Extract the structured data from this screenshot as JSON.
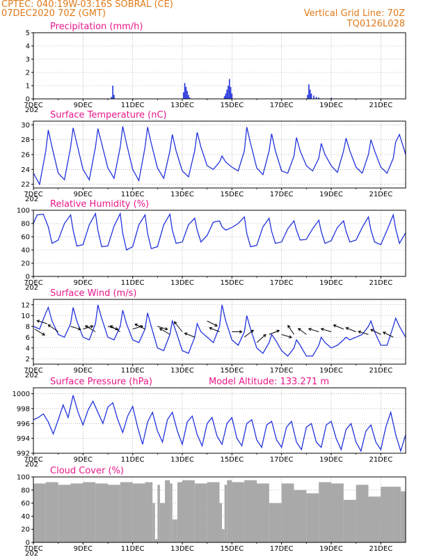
{
  "header": {
    "org_station": "CPTEC:   040:19W-03:16S   SOBRAL (CE)",
    "run_time": "07DEC2020 70Z (GMT)",
    "vertical_grid_line": "Vertical Grid Line: 70Z",
    "code": "TQ0126L028"
  },
  "colors": {
    "header": "#e07a1a",
    "title": "#e8178a",
    "line": "#2233dd",
    "cloud": "#a9a9a9",
    "wind_arrow": "#000000"
  },
  "x_ticks": [
    "7DEC",
    "9DEC",
    "11DEC",
    "13DEC",
    "15DEC",
    "17DEC",
    "19DEC",
    "21DEC"
  ],
  "year_stub": "202",
  "chart_data": [
    {
      "type": "bar",
      "title": "Precipitation (mm/h)",
      "x_unit": "days since 7DEC 00Z",
      "ylim": [
        0,
        5
      ],
      "yticks": [
        0,
        1,
        2,
        3,
        4,
        5
      ],
      "x": [
        3.15,
        3.2,
        3.25,
        6.05,
        6.1,
        6.15,
        6.2,
        6.25,
        6.3,
        7.7,
        7.75,
        7.8,
        7.85,
        7.9,
        7.95,
        8.0,
        11.05,
        11.1,
        11.15,
        11.2,
        11.3,
        11.4,
        11.5,
        12.0
      ],
      "values": [
        0.15,
        1.0,
        0.3,
        0.5,
        1.2,
        0.9,
        0.6,
        0.3,
        0.1,
        0.2,
        0.4,
        0.7,
        1.0,
        1.5,
        0.9,
        0.4,
        0.3,
        1.1,
        0.7,
        0.4,
        0.25,
        0.15,
        0.1,
        0.1
      ]
    },
    {
      "type": "line",
      "title": "Surface Temperature (nC)",
      "ylim": [
        21.5,
        30.5
      ],
      "yticks": [
        22,
        24,
        26,
        28,
        30
      ],
      "x": [
        0,
        0.25,
        0.5,
        0.6,
        0.75,
        1.0,
        1.25,
        1.5,
        1.6,
        1.75,
        2.0,
        2.25,
        2.5,
        2.6,
        2.75,
        3.0,
        3.25,
        3.5,
        3.6,
        3.75,
        4.0,
        4.25,
        4.5,
        4.6,
        4.75,
        5.0,
        5.25,
        5.5,
        5.6,
        5.75,
        6.0,
        6.25,
        6.5,
        6.6,
        6.75,
        7.0,
        7.25,
        7.5,
        7.6,
        7.75,
        8.0,
        8.25,
        8.5,
        8.6,
        8.75,
        9.0,
        9.25,
        9.5,
        9.6,
        9.75,
        10.0,
        10.25,
        10.5,
        10.6,
        10.75,
        11.0,
        11.25,
        11.5,
        11.6,
        11.75,
        12.0,
        12.25,
        12.5,
        12.6,
        12.75,
        13.0,
        13.25,
        13.5,
        13.6,
        13.75,
        14.0,
        14.25,
        14.5,
        14.6,
        14.75,
        15.0
      ],
      "values": [
        23.5,
        22.0,
        26.5,
        29.3,
        27.0,
        23.5,
        22.6,
        27.0,
        29.6,
        27.5,
        24.0,
        22.6,
        27.0,
        29.5,
        27.5,
        24.2,
        22.8,
        27.0,
        29.8,
        27.5,
        24.0,
        22.5,
        27.0,
        29.7,
        27.5,
        24.2,
        22.8,
        26.5,
        28.7,
        26.5,
        23.8,
        23.0,
        26.5,
        29.0,
        27.0,
        24.5,
        24.0,
        25.0,
        25.8,
        25.0,
        24.3,
        23.8,
        26.5,
        29.7,
        27.5,
        24.2,
        23.3,
        26.5,
        28.8,
        26.5,
        23.8,
        23.5,
        25.8,
        28.3,
        26.5,
        24.5,
        23.8,
        25.5,
        27.5,
        26.0,
        24.5,
        23.6,
        26.5,
        28.2,
        26.5,
        24.3,
        23.5,
        26.0,
        28.0,
        26.5,
        24.3,
        23.5,
        25.5,
        27.7,
        28.7,
        26.0
      ]
    },
    {
      "type": "line",
      "title": "Relative Humidity (%)",
      "ylim": [
        0,
        100
      ],
      "yticks": [
        0,
        20,
        40,
        60,
        80,
        100
      ],
      "x": [
        0,
        0.15,
        0.4,
        0.6,
        0.75,
        1.0,
        1.25,
        1.5,
        1.6,
        1.75,
        2.0,
        2.25,
        2.5,
        2.6,
        2.75,
        3.0,
        3.25,
        3.5,
        3.6,
        3.75,
        4.0,
        4.25,
        4.5,
        4.6,
        4.75,
        5.0,
        5.25,
        5.5,
        5.6,
        5.75,
        6.0,
        6.25,
        6.5,
        6.6,
        6.75,
        7.0,
        7.25,
        7.5,
        7.6,
        7.75,
        8.0,
        8.25,
        8.5,
        8.6,
        8.75,
        9.0,
        9.25,
        9.5,
        9.6,
        9.75,
        10.0,
        10.25,
        10.5,
        10.6,
        10.75,
        11.0,
        11.25,
        11.5,
        11.6,
        11.75,
        12.0,
        12.25,
        12.5,
        12.6,
        12.75,
        13.0,
        13.25,
        13.5,
        13.6,
        13.75,
        14.0,
        14.25,
        14.5,
        14.6,
        14.75,
        15.0
      ],
      "values": [
        80,
        93,
        94,
        75,
        50,
        55,
        80,
        93,
        70,
        46,
        48,
        78,
        95,
        70,
        45,
        46,
        76,
        95,
        65,
        40,
        45,
        78,
        93,
        65,
        42,
        45,
        78,
        94,
        70,
        50,
        52,
        78,
        88,
        70,
        52,
        62,
        82,
        84,
        75,
        70,
        74,
        80,
        90,
        65,
        45,
        47,
        75,
        88,
        68,
        50,
        52,
        72,
        84,
        70,
        55,
        56,
        72,
        85,
        68,
        50,
        54,
        74,
        84,
        68,
        52,
        55,
        74,
        90,
        70,
        52,
        48,
        70,
        93,
        72,
        50,
        66
      ]
    },
    {
      "type": "line",
      "title": "Surface Wind (m/s)",
      "ylim": [
        1,
        13
      ],
      "yticks": [
        2,
        4,
        6,
        8,
        10,
        12
      ],
      "x": [
        0,
        0.25,
        0.5,
        0.6,
        0.75,
        1.0,
        1.25,
        1.5,
        1.6,
        1.75,
        2.0,
        2.25,
        2.5,
        2.6,
        2.75,
        3.0,
        3.25,
        3.5,
        3.6,
        3.75,
        4.0,
        4.25,
        4.5,
        4.6,
        4.75,
        5.0,
        5.25,
        5.5,
        5.6,
        5.75,
        6.0,
        6.25,
        6.5,
        6.6,
        6.75,
        7.0,
        7.25,
        7.5,
        7.6,
        7.75,
        8.0,
        8.25,
        8.5,
        8.6,
        8.75,
        9.0,
        9.25,
        9.5,
        9.6,
        9.75,
        10.0,
        10.25,
        10.5,
        10.6,
        10.75,
        11.0,
        11.25,
        11.5,
        11.6,
        11.75,
        12.0,
        12.25,
        12.5,
        12.6,
        12.75,
        13.0,
        13.25,
        13.5,
        13.6,
        13.75,
        14.0,
        14.25,
        14.5,
        14.6,
        14.75,
        15.0
      ],
      "values": [
        8,
        7.5,
        10.5,
        11.5,
        9.0,
        6.5,
        6.0,
        8.5,
        11.5,
        9.0,
        6.0,
        5.5,
        8.5,
        12.0,
        9.5,
        6.0,
        5.5,
        8.0,
        11.0,
        8.5,
        5.5,
        5.0,
        7.5,
        10.5,
        8.0,
        4.0,
        3.5,
        6.5,
        9.0,
        7.0,
        3.5,
        3.0,
        6.0,
        8.5,
        7.0,
        6.0,
        5.0,
        8.0,
        12.0,
        9.0,
        5.5,
        4.5,
        7.0,
        10.0,
        7.5,
        4.0,
        3.0,
        5.0,
        6.5,
        5.5,
        3.5,
        2.5,
        4.0,
        5.5,
        4.5,
        2.5,
        2.5,
        4.5,
        6.0,
        5.0,
        4.0,
        4.5,
        5.5,
        6.0,
        5.5,
        6.0,
        6.5,
        8.0,
        9.0,
        7.0,
        4.5,
        4.5,
        8.0,
        9.5,
        8.0,
        6.0
      ],
      "wind_arrows": [
        {
          "x": 0.05,
          "y": 7.5,
          "u": 1.0,
          "v": -0.6
        },
        {
          "x": 0.55,
          "y": 8.5,
          "u": -1.0,
          "v": 0.3
        },
        {
          "x": 1.0,
          "y": 7.0,
          "u": -1.0,
          "v": 0.7
        },
        {
          "x": 1.5,
          "y": 8.0,
          "u": 1.0,
          "v": -0.3
        },
        {
          "x": 2.0,
          "y": 7.5,
          "u": 1.0,
          "v": 0.3
        },
        {
          "x": 2.5,
          "y": 7.0,
          "u": -1.0,
          "v": 0.6
        },
        {
          "x": 3.0,
          "y": 8.0,
          "u": 1.0,
          "v": -0.3
        },
        {
          "x": 3.5,
          "y": 7.0,
          "u": -1.0,
          "v": 0.6
        },
        {
          "x": 4.0,
          "y": 7.5,
          "u": 1.0,
          "v": 0.3
        },
        {
          "x": 4.5,
          "y": 7.5,
          "u": -1.0,
          "v": 0.5
        },
        {
          "x": 5.0,
          "y": 8.0,
          "u": 1.0,
          "v": -0.3
        },
        {
          "x": 5.5,
          "y": 6.5,
          "u": -1.0,
          "v": 0.6
        },
        {
          "x": 6.0,
          "y": 7.0,
          "u": -0.8,
          "v": 1.0
        },
        {
          "x": 6.5,
          "y": 6.0,
          "u": -1.0,
          "v": 0.4
        },
        {
          "x": 7.0,
          "y": 9.0,
          "u": 1.0,
          "v": -0.5
        },
        {
          "x": 7.5,
          "y": 7.0,
          "u": -1.0,
          "v": 0.4
        },
        {
          "x": 8.0,
          "y": 7.0,
          "u": 1.0,
          "v": 0.0
        },
        {
          "x": 8.5,
          "y": 6.0,
          "u": 0.9,
          "v": 0.7
        },
        {
          "x": 9.0,
          "y": 5.0,
          "u": 0.9,
          "v": 0.8
        },
        {
          "x": 9.5,
          "y": 6.5,
          "u": 1.0,
          "v": 0.4
        },
        {
          "x": 10.0,
          "y": 6.5,
          "u": 1.0,
          "v": -0.3
        },
        {
          "x": 10.5,
          "y": 6.5,
          "u": -0.6,
          "v": 0.9
        },
        {
          "x": 11.0,
          "y": 6.5,
          "u": -0.8,
          "v": 0.6
        },
        {
          "x": 11.5,
          "y": 7.0,
          "u": -1.0,
          "v": 0.3
        },
        {
          "x": 12.0,
          "y": 7.0,
          "u": -1.0,
          "v": 0.3
        },
        {
          "x": 12.5,
          "y": 7.5,
          "u": -1.0,
          "v": 0.4
        },
        {
          "x": 13.0,
          "y": 7.0,
          "u": -1.0,
          "v": 0.4
        },
        {
          "x": 13.5,
          "y": 6.5,
          "u": -1.0,
          "v": 0.3
        },
        {
          "x": 14.0,
          "y": 6.5,
          "u": -1.0,
          "v": 0.5
        },
        {
          "x": 14.5,
          "y": 6.0,
          "u": -1.0,
          "v": 0.5
        }
      ]
    },
    {
      "type": "line",
      "title": "Surface Pressure (hPa)",
      "model_altitude": "Model Altitude: 133.271 m",
      "ylim": [
        992,
        1000.8
      ],
      "yticks": [
        992,
        994,
        996,
        998,
        1000
      ],
      "x": [
        0,
        0.2,
        0.4,
        0.6,
        0.8,
        1.0,
        1.2,
        1.4,
        1.6,
        1.8,
        2.0,
        2.2,
        2.4,
        2.6,
        2.8,
        3.0,
        3.2,
        3.4,
        3.6,
        3.8,
        4.0,
        4.2,
        4.4,
        4.6,
        4.8,
        5.0,
        5.2,
        5.4,
        5.6,
        5.8,
        6.0,
        6.2,
        6.4,
        6.6,
        6.8,
        7.0,
        7.2,
        7.4,
        7.6,
        7.8,
        8.0,
        8.2,
        8.4,
        8.6,
        8.8,
        9.0,
        9.2,
        9.4,
        9.6,
        9.8,
        10.0,
        10.2,
        10.4,
        10.6,
        10.8,
        11.0,
        11.2,
        11.4,
        11.6,
        11.8,
        12.0,
        12.2,
        12.4,
        12.6,
        12.8,
        13.0,
        13.2,
        13.4,
        13.6,
        13.8,
        14.0,
        14.2,
        14.4,
        14.6,
        14.8,
        15.0
      ],
      "values": [
        996.5,
        996.8,
        997.3,
        996.2,
        994.6,
        996.5,
        998.5,
        996.8,
        999.8,
        997.5,
        995.8,
        997.8,
        999.0,
        997.5,
        996.0,
        998.2,
        998.8,
        996.5,
        994.8,
        997.0,
        998.3,
        995.5,
        993.2,
        996.2,
        997.5,
        995.0,
        993.5,
        996.5,
        997.5,
        995.0,
        993.2,
        996.2,
        997.0,
        994.5,
        993.0,
        996.0,
        996.8,
        994.3,
        993.2,
        996.0,
        996.8,
        994.0,
        993.0,
        996.0,
        996.5,
        993.8,
        992.8,
        995.8,
        996.3,
        993.8,
        992.8,
        995.5,
        996.3,
        993.5,
        992.5,
        995.5,
        996.0,
        993.5,
        992.8,
        995.8,
        996.3,
        994.0,
        992.5,
        995.2,
        996.0,
        993.5,
        992.3,
        995.0,
        995.8,
        993.5,
        992.5,
        995.5,
        997.5,
        994.5,
        992.3,
        994.5
      ]
    },
    {
      "type": "area",
      "title": "Cloud Cover (%)",
      "ylim": [
        0,
        100
      ],
      "yticks": [
        0,
        20,
        40,
        60,
        80,
        100
      ],
      "x": [
        0,
        0.5,
        1.0,
        1.5,
        2.0,
        2.5,
        3.0,
        3.5,
        4.0,
        4.5,
        4.8,
        4.9,
        5.0,
        5.1,
        5.3,
        5.5,
        5.6,
        5.8,
        6.0,
        6.5,
        7.0,
        7.5,
        7.6,
        7.7,
        7.8,
        8.0,
        8.5,
        9.0,
        9.5,
        10.0,
        10.5,
        11.0,
        11.5,
        12.0,
        12.5,
        13.0,
        13.5,
        14.0,
        14.5,
        14.8,
        15.0
      ],
      "values": [
        90,
        92,
        88,
        90,
        92,
        90,
        88,
        92,
        90,
        92,
        60,
        5,
        88,
        60,
        95,
        90,
        35,
        92,
        95,
        90,
        92,
        60,
        20,
        88,
        95,
        92,
        95,
        90,
        60,
        90,
        80,
        75,
        92,
        90,
        65,
        88,
        70,
        85,
        85,
        78,
        78
      ]
    }
  ]
}
